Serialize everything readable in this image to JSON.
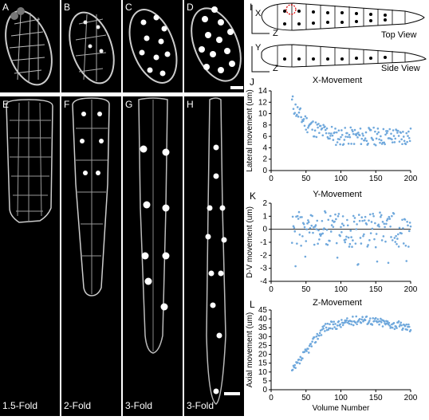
{
  "panels": {
    "A": "A",
    "B": "B",
    "C": "C",
    "D": "D",
    "E": "E",
    "F": "F",
    "G": "G",
    "H": "H",
    "I": "I",
    "J": "J",
    "K": "K",
    "L": "L"
  },
  "fold_labels": {
    "E": "1.5-Fold",
    "F": "2-Fold",
    "G": "3-Fold",
    "H": "3-Fold"
  },
  "diagram": {
    "top_view": "Top View",
    "side_view": "Side View",
    "axis_x": "X",
    "axis_y": "Y",
    "axis_z1": "Z",
    "axis_z2": "Z"
  },
  "chart_data": [
    {
      "type": "scatter",
      "title": "X-Movement",
      "xlabel": "",
      "ylabel": "Lateral movement (um)",
      "xlim": [
        0,
        200
      ],
      "ylim": [
        0,
        14
      ],
      "xticks": [
        0,
        50,
        100,
        150,
        200
      ],
      "yticks": [
        0,
        2,
        4,
        6,
        8,
        10,
        12,
        14
      ],
      "color": "#6fa8dc",
      "trend": "starts ~12 at x≈30, decays to ~6 by x≈90, then fluctuates 4–8 until 200"
    },
    {
      "type": "scatter",
      "title": "Y-Movement",
      "xlabel": "",
      "ylabel": "D-V movement (um)",
      "xlim": [
        0,
        200
      ],
      "ylim": [
        -4,
        2
      ],
      "xticks": [
        0,
        50,
        100,
        150,
        200
      ],
      "yticks": [
        -4,
        -3,
        -2,
        -1,
        0,
        1,
        2
      ],
      "color": "#6fa8dc",
      "trend": "scatter around 0, mostly between -1.5 and 1.5, a few near -2.8 and 2"
    },
    {
      "type": "scatter",
      "title": "Z-Movement",
      "xlabel": "Volume Number",
      "ylabel": "Axial movement (um)",
      "xlim": [
        0,
        200
      ],
      "ylim": [
        0,
        45
      ],
      "xticks": [
        0,
        50,
        100,
        150,
        200
      ],
      "yticks": [
        0,
        5,
        10,
        15,
        20,
        25,
        30,
        35,
        40,
        45
      ],
      "color": "#6fa8dc",
      "trend": "starts ~10 at x≈30, rises to ~35 by x≈75, ~40 near x≈130, ~35 at 200"
    }
  ]
}
